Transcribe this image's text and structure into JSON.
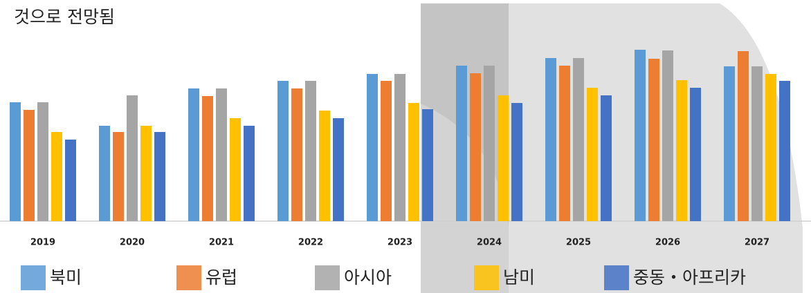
{
  "chart_data": {
    "type": "bar",
    "title": "것으로 전망됨",
    "categories": [
      "2019",
      "2020",
      "2021",
      "2022",
      "2023",
      "2024",
      "2025",
      "2026",
      "2027"
    ],
    "ylim": [
      0,
      320
    ],
    "series": [
      {
        "name": "북미",
        "color": "#5b9bd5",
        "values": [
          172,
          138,
          192,
          203,
          213,
          225,
          236,
          248,
          224
        ]
      },
      {
        "name": "유럽",
        "color": "#ed7d31",
        "values": [
          161,
          129,
          181,
          192,
          203,
          214,
          225,
          235,
          246
        ]
      },
      {
        "name": "아시아",
        "color": "#a5a5a5",
        "values": [
          172,
          182,
          192,
          203,
          213,
          225,
          236,
          247,
          224
        ]
      },
      {
        "name": "남미",
        "color": "#ffc000",
        "values": [
          129,
          138,
          149,
          160,
          171,
          182,
          193,
          204,
          213
        ]
      },
      {
        "name": "중동・아프리카",
        "color": "#4472c4",
        "values": [
          118,
          129,
          138,
          149,
          162,
          171,
          182,
          193,
          203
        ]
      }
    ]
  }
}
